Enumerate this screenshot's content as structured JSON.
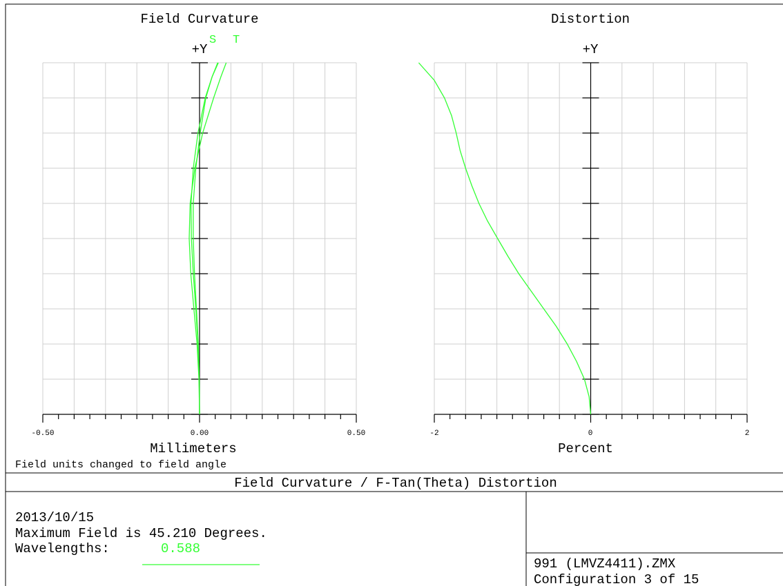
{
  "plot_title": "Field Curvature / F-Tan(Theta) Distortion",
  "note": "Field units changed to field angle",
  "info": {
    "date": "2013/10/15",
    "max_field": "Maximum Field is 45.210 Degrees.",
    "wavelengths_label": "Wavelengths:",
    "wavelength_value": "0.588"
  },
  "file": {
    "name": "991 (LMVZ4411).ZMX",
    "config": "Configuration 3 of 15"
  },
  "colors": {
    "curve": "#33ff33",
    "grid": "#cfcfcf",
    "axis": "#000000"
  },
  "chart_data": [
    {
      "type": "line",
      "title": "Field Curvature",
      "ylabel": "+Y",
      "xlabel": "Millimeters",
      "xlim": [
        -0.5,
        0.5
      ],
      "ylim": [
        0,
        1
      ],
      "x_ticks": [
        "-0.50",
        "0.00",
        "0.50"
      ],
      "grid": true,
      "series": [
        {
          "name": "S",
          "y": [
            0,
            0.1,
            0.2,
            0.3,
            0.4,
            0.5,
            0.6,
            0.7,
            0.8,
            0.9,
            0.96,
            1.0
          ],
          "x": [
            0,
            -0.001,
            -0.005,
            -0.012,
            -0.02,
            -0.026,
            -0.027,
            -0.02,
            -0.005,
            0.018,
            0.04,
            0.06
          ]
        },
        {
          "name": "T",
          "y": [
            0,
            0.1,
            0.2,
            0.3,
            0.4,
            0.5,
            0.6,
            0.7,
            0.8,
            0.9,
            0.96,
            1.0
          ],
          "x": [
            0,
            -0.002,
            -0.008,
            -0.018,
            -0.028,
            -0.033,
            -0.03,
            -0.015,
            0.01,
            0.045,
            0.068,
            0.085
          ]
        },
        {
          "name": "",
          "y": [
            0,
            0.1,
            0.2,
            0.3,
            0.4,
            0.5,
            0.6,
            0.7,
            0.8,
            0.9,
            0.96,
            1.0
          ],
          "x": [
            0,
            -0.001,
            -0.004,
            -0.01,
            -0.016,
            -0.02,
            -0.02,
            -0.012,
            0.002,
            0.02,
            0.04,
            0.058
          ]
        }
      ]
    },
    {
      "type": "line",
      "title": "Distortion",
      "ylabel": "+Y",
      "xlabel": "Percent",
      "xlim": [
        -2,
        2
      ],
      "ylim": [
        0,
        1
      ],
      "x_ticks": [
        "-2",
        "0",
        "2"
      ],
      "grid": true,
      "series": [
        {
          "name": "",
          "y": [
            0,
            0.05,
            0.1,
            0.15,
            0.2,
            0.25,
            0.3,
            0.35,
            0.4,
            0.45,
            0.5,
            0.55,
            0.6,
            0.65,
            0.7,
            0.75,
            0.8,
            0.85,
            0.9,
            0.95,
            1.0
          ],
          "x": [
            0,
            -0.02,
            -0.08,
            -0.18,
            -0.3,
            -0.44,
            -0.6,
            -0.76,
            -0.92,
            -1.06,
            -1.19,
            -1.32,
            -1.43,
            -1.52,
            -1.6,
            -1.67,
            -1.72,
            -1.78,
            -1.87,
            -2.0,
            -2.2
          ]
        }
      ]
    }
  ]
}
